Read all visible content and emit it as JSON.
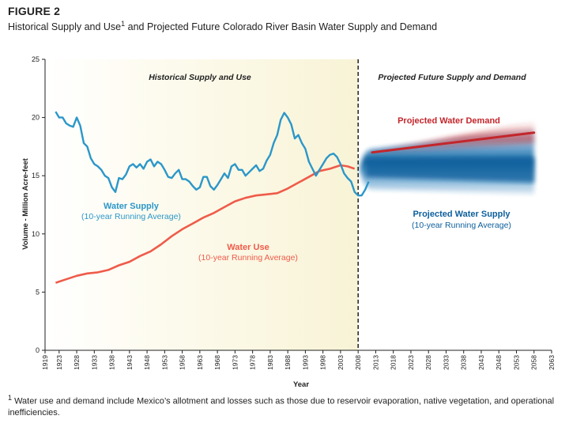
{
  "figure": {
    "label": "FIGURE 2",
    "title": "Historical Supply and Use",
    "title_sup": "1",
    "title_rest": " and Projected Future Colorado River Basin Water Supply and Demand",
    "footnote_sup": "1",
    "footnote": " Water use and demand include Mexico’s allotment and losses such as those due to reservoir evaporation, native vegetation, and operational inefficiencies."
  },
  "colors": {
    "supply": "#2b97c9",
    "use": "#ef5b4a",
    "demand": "#c3262b",
    "projected_supply": "#0d5f9c",
    "historical_bg": "#fbf8e4"
  },
  "chart_data": {
    "type": "line",
    "title": "Historical Supply and Use and Projected Future Colorado River Basin Water Supply and Demand",
    "xlabel": "Year",
    "ylabel": "Volume - Million Acre-feet",
    "xlim": [
      1919,
      2063
    ],
    "ylim": [
      0,
      25
    ],
    "yticks": [
      0,
      5,
      10,
      15,
      20,
      25
    ],
    "xticks": [
      "1919",
      "1923",
      "1928",
      "1933",
      "1938",
      "1943",
      "1948",
      "1953",
      "1958",
      "1963",
      "1968",
      "1973",
      "1978",
      "1983",
      "1988",
      "1993",
      "1998",
      "2003",
      "2008",
      "2013",
      "2018",
      "2023",
      "2028",
      "2033",
      "2038",
      "2043",
      "2048",
      "2053",
      "2058",
      "2063"
    ],
    "divider_year": 2008,
    "regions": [
      {
        "name": "historical",
        "label": "Historical Supply and Use",
        "from": 1919,
        "to": 2008
      },
      {
        "name": "projected",
        "label": "Projected Future Supply and Demand",
        "from": 2008,
        "to": 2063
      }
    ],
    "series": [
      {
        "name": "Water Supply",
        "sublabel": "(10-year Running Average)",
        "x": [
          1922,
          1923,
          1924,
          1925,
          1926,
          1927,
          1928,
          1929,
          1930,
          1931,
          1932,
          1933,
          1934,
          1935,
          1936,
          1937,
          1938,
          1939,
          1940,
          1941,
          1942,
          1943,
          1944,
          1945,
          1946,
          1947,
          1948,
          1949,
          1950,
          1951,
          1952,
          1953,
          1954,
          1955,
          1956,
          1957,
          1958,
          1959,
          1960,
          1961,
          1962,
          1963,
          1964,
          1965,
          1966,
          1967,
          1968,
          1969,
          1970,
          1971,
          1972,
          1973,
          1974,
          1975,
          1976,
          1977,
          1978,
          1979,
          1980,
          1981,
          1982,
          1983,
          1984,
          1985,
          1986,
          1987,
          1988,
          1989,
          1990,
          1991,
          1992,
          1993,
          1994,
          1995,
          1996,
          1997,
          1998,
          1999,
          2000,
          2001,
          2002,
          2003,
          2004,
          2005,
          2006,
          2007,
          2008,
          2009,
          2010,
          2011
        ],
        "values": [
          20.5,
          20.0,
          20.0,
          19.5,
          19.3,
          19.2,
          20.0,
          19.3,
          17.8,
          17.5,
          16.5,
          16.0,
          15.8,
          15.5,
          15.0,
          14.8,
          14.0,
          13.6,
          14.8,
          14.7,
          15.1,
          15.8,
          16.0,
          15.7,
          16.0,
          15.6,
          16.2,
          16.4,
          15.8,
          16.2,
          16.0,
          15.5,
          14.9,
          14.8,
          15.2,
          15.5,
          14.7,
          14.7,
          14.5,
          14.1,
          13.8,
          14.0,
          14.9,
          14.9,
          14.1,
          13.8,
          14.2,
          14.7,
          15.2,
          14.8,
          15.8,
          16.0,
          15.5,
          15.5,
          15.0,
          15.3,
          15.6,
          15.9,
          15.4,
          15.6,
          16.3,
          16.8,
          17.8,
          18.5,
          19.8,
          20.4,
          20.0,
          19.4,
          18.2,
          18.5,
          17.8,
          17.3,
          16.2,
          15.6,
          15.0,
          15.5,
          16.0,
          16.5,
          16.8,
          16.9,
          16.6,
          16.0,
          15.2,
          14.8,
          14.5,
          13.6,
          13.3,
          13.3,
          13.8,
          14.5
        ]
      },
      {
        "name": "Water Use",
        "sublabel": "(10-year Running Average)",
        "x": [
          1922,
          1925,
          1928,
          1931,
          1934,
          1937,
          1940,
          1943,
          1946,
          1949,
          1952,
          1955,
          1958,
          1961,
          1964,
          1967,
          1970,
          1973,
          1976,
          1979,
          1982,
          1985,
          1988,
          1991,
          1994,
          1997,
          2000,
          2003,
          2005,
          2007
        ],
        "values": [
          5.8,
          6.1,
          6.4,
          6.6,
          6.7,
          6.9,
          7.3,
          7.6,
          8.1,
          8.5,
          9.1,
          9.8,
          10.4,
          10.9,
          11.4,
          11.8,
          12.3,
          12.8,
          13.1,
          13.3,
          13.4,
          13.5,
          13.9,
          14.4,
          14.9,
          15.4,
          15.6,
          15.9,
          15.8,
          15.6
        ]
      },
      {
        "name": "Projected Water Demand",
        "x": [
          2012,
          2058
        ],
        "values": [
          17.0,
          18.7
        ]
      },
      {
        "name": "Projected Water Supply",
        "sublabel": "(10-year Running Average)",
        "x": [
          2012,
          2058
        ],
        "range_low": [
          13.8,
          13.4
        ],
        "range_high": [
          17.3,
          19.0
        ],
        "median": [
          15.7,
          15.5
        ]
      }
    ]
  }
}
